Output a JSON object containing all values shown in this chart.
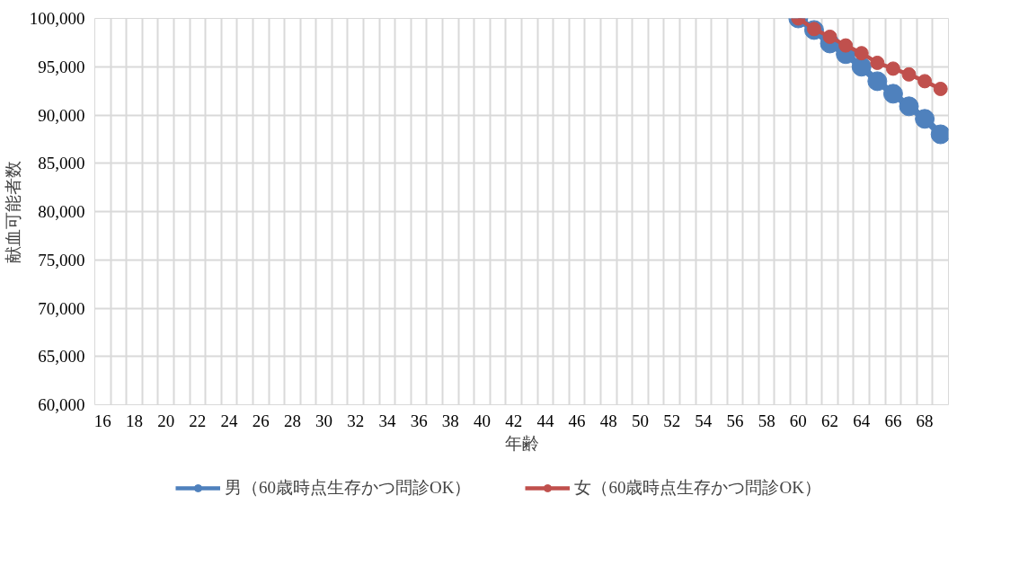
{
  "chart_data": {
    "type": "line",
    "xlabel": "年齢",
    "ylabel": "献血可能者数",
    "categories": [
      "16",
      null,
      "18",
      null,
      "20",
      null,
      "22",
      null,
      "24",
      null,
      "26",
      null,
      "28",
      null,
      "30",
      null,
      "32",
      null,
      "34",
      null,
      "36",
      null,
      "38",
      null,
      "40",
      null,
      "42",
      null,
      "44",
      null,
      "46",
      null,
      "48",
      null,
      "50",
      null,
      "52",
      null,
      "54",
      null,
      "56",
      null,
      "58",
      null,
      "60",
      null,
      "62",
      null,
      "64",
      null,
      "66",
      null,
      "68",
      null
    ],
    "series": [
      {
        "name": "男（60歳時点生存かつ問診OK）",
        "color": "#4f81bd",
        "values": [
          null,
          null,
          null,
          null,
          null,
          null,
          null,
          null,
          null,
          null,
          null,
          null,
          null,
          null,
          null,
          null,
          null,
          null,
          null,
          null,
          null,
          null,
          null,
          null,
          null,
          null,
          null,
          null,
          null,
          null,
          null,
          null,
          null,
          null,
          null,
          null,
          null,
          null,
          null,
          null,
          null,
          null,
          null,
          null,
          100000,
          98800,
          97400,
          96300,
          95000,
          93500,
          92200,
          90900,
          89600,
          88000
        ]
      },
      {
        "name": "女（60歳時点生存かつ問診OK）",
        "color": "#c0504d",
        "values": [
          null,
          null,
          null,
          null,
          null,
          null,
          null,
          null,
          null,
          null,
          null,
          null,
          null,
          null,
          null,
          null,
          null,
          null,
          null,
          null,
          null,
          null,
          null,
          null,
          null,
          null,
          null,
          null,
          null,
          null,
          null,
          null,
          null,
          null,
          null,
          null,
          null,
          null,
          null,
          null,
          null,
          null,
          null,
          null,
          100000,
          98900,
          98100,
          97200,
          96400,
          95400,
          94800,
          94200,
          93500,
          92700
        ]
      }
    ],
    "ylim": [
      60000,
      100000
    ],
    "yticks": [
      {
        "value": 60000,
        "label": "60,000"
      },
      {
        "value": 65000,
        "label": "65,000"
      },
      {
        "value": 70000,
        "label": "70,000"
      },
      {
        "value": 75000,
        "label": "75,000"
      },
      {
        "value": 80000,
        "label": "80,000"
      },
      {
        "value": 85000,
        "label": "85,000"
      },
      {
        "value": 90000,
        "label": "90,000"
      },
      {
        "value": 95000,
        "label": "95,000"
      },
      {
        "value": 100000,
        "label": "100,000"
      }
    ],
    "grid": true,
    "legend": "bottom",
    "marker": "circle",
    "line_style": "solid"
  }
}
